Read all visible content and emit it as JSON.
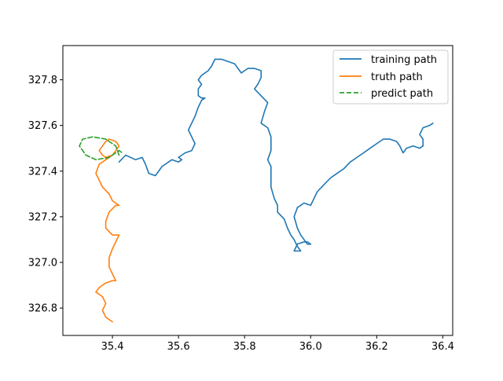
{
  "chart_data": {
    "type": "line",
    "xlim": [
      35.25,
      36.43
    ],
    "ylim": [
      326.68,
      327.95
    ],
    "xticks": [
      35.4,
      35.6,
      35.8,
      36.0,
      36.2,
      36.4
    ],
    "yticks": [
      326.8,
      327.0,
      327.2,
      327.4,
      327.6,
      327.8
    ],
    "xtick_labels": [
      "35.4",
      "35.6",
      "35.8",
      "36.0",
      "36.2",
      "36.4"
    ],
    "ytick_labels": [
      "326.8",
      "327.0",
      "327.2",
      "327.4",
      "327.6",
      "327.8"
    ],
    "grid": false,
    "legend_position": "top-right",
    "series": [
      {
        "name": "training path",
        "color": "#1f77b4",
        "style": "solid",
        "points": [
          [
            35.42,
            327.44
          ],
          [
            35.44,
            327.47
          ],
          [
            35.47,
            327.45
          ],
          [
            35.49,
            327.46
          ],
          [
            35.5,
            327.43
          ],
          [
            35.51,
            327.39
          ],
          [
            35.53,
            327.38
          ],
          [
            35.55,
            327.42
          ],
          [
            35.58,
            327.45
          ],
          [
            35.6,
            327.44
          ],
          [
            35.61,
            327.45
          ],
          [
            35.6,
            327.46
          ],
          [
            35.62,
            327.48
          ],
          [
            35.64,
            327.49
          ],
          [
            35.65,
            327.52
          ],
          [
            35.64,
            327.55
          ],
          [
            35.63,
            327.58
          ],
          [
            35.64,
            327.61
          ],
          [
            35.65,
            327.64
          ],
          [
            35.66,
            327.68
          ],
          [
            35.67,
            327.71
          ],
          [
            35.68,
            327.72
          ],
          [
            35.67,
            327.72
          ],
          [
            35.66,
            327.73
          ],
          [
            35.66,
            327.76
          ],
          [
            35.67,
            327.78
          ],
          [
            35.66,
            327.8
          ],
          [
            35.67,
            327.82
          ],
          [
            35.69,
            327.84
          ],
          [
            35.7,
            327.86
          ],
          [
            35.71,
            327.89
          ],
          [
            35.73,
            327.89
          ],
          [
            35.75,
            327.88
          ],
          [
            35.77,
            327.87
          ],
          [
            35.78,
            327.85
          ],
          [
            35.79,
            327.83
          ],
          [
            35.8,
            327.84
          ],
          [
            35.81,
            327.85
          ],
          [
            35.83,
            327.85
          ],
          [
            35.85,
            327.84
          ],
          [
            35.85,
            327.81
          ],
          [
            35.84,
            327.78
          ],
          [
            35.83,
            327.76
          ],
          [
            35.85,
            327.73
          ],
          [
            35.87,
            327.7
          ],
          [
            35.86,
            327.66
          ],
          [
            35.85,
            327.61
          ],
          [
            35.87,
            327.59
          ],
          [
            35.88,
            327.55
          ],
          [
            35.88,
            327.49
          ],
          [
            35.87,
            327.45
          ],
          [
            35.88,
            327.42
          ],
          [
            35.88,
            327.38
          ],
          [
            35.88,
            327.33
          ],
          [
            35.89,
            327.28
          ],
          [
            35.9,
            327.25
          ],
          [
            35.9,
            327.22
          ],
          [
            35.92,
            327.19
          ],
          [
            35.93,
            327.15
          ],
          [
            35.94,
            327.12
          ],
          [
            35.95,
            327.1
          ],
          [
            35.96,
            327.07
          ],
          [
            35.97,
            327.05
          ],
          [
            35.95,
            327.05
          ],
          [
            35.96,
            327.08
          ],
          [
            35.98,
            327.09
          ],
          [
            35.99,
            327.09
          ],
          [
            36.0,
            327.08
          ],
          [
            35.99,
            327.08
          ],
          [
            35.97,
            327.12
          ],
          [
            35.96,
            327.15
          ],
          [
            35.95,
            327.2
          ],
          [
            35.96,
            327.24
          ],
          [
            35.98,
            327.26
          ],
          [
            36.0,
            327.25
          ],
          [
            36.01,
            327.28
          ],
          [
            36.02,
            327.31
          ],
          [
            36.04,
            327.34
          ],
          [
            36.06,
            327.37
          ],
          [
            36.08,
            327.39
          ],
          [
            36.1,
            327.41
          ],
          [
            36.12,
            327.44
          ],
          [
            36.14,
            327.46
          ],
          [
            36.16,
            327.48
          ],
          [
            36.18,
            327.5
          ],
          [
            36.2,
            327.52
          ],
          [
            36.22,
            327.54
          ],
          [
            36.24,
            327.54
          ],
          [
            36.26,
            327.53
          ],
          [
            36.27,
            327.51
          ],
          [
            36.28,
            327.48
          ],
          [
            36.29,
            327.5
          ],
          [
            36.31,
            327.51
          ],
          [
            36.33,
            327.5
          ],
          [
            36.34,
            327.51
          ],
          [
            36.34,
            327.54
          ],
          [
            36.33,
            327.56
          ],
          [
            36.34,
            327.59
          ],
          [
            36.36,
            327.6
          ],
          [
            36.37,
            327.61
          ]
        ]
      },
      {
        "name": "truth path",
        "color": "#ff7f0e",
        "style": "solid",
        "points": [
          [
            35.4,
            326.74
          ],
          [
            35.38,
            326.76
          ],
          [
            35.37,
            326.79
          ],
          [
            35.38,
            326.82
          ],
          [
            35.37,
            326.85
          ],
          [
            35.35,
            326.87
          ],
          [
            35.36,
            326.89
          ],
          [
            35.38,
            326.91
          ],
          [
            35.4,
            326.92
          ],
          [
            35.41,
            326.92
          ],
          [
            35.4,
            326.95
          ],
          [
            35.39,
            326.98
          ],
          [
            35.39,
            327.02
          ],
          [
            35.4,
            327.06
          ],
          [
            35.41,
            327.09
          ],
          [
            35.42,
            327.12
          ],
          [
            35.4,
            327.12
          ],
          [
            35.38,
            327.15
          ],
          [
            35.38,
            327.18
          ],
          [
            35.39,
            327.22
          ],
          [
            35.41,
            327.25
          ],
          [
            35.42,
            327.25
          ],
          [
            35.4,
            327.27
          ],
          [
            35.39,
            327.3
          ],
          [
            35.37,
            327.33
          ],
          [
            35.36,
            327.36
          ],
          [
            35.35,
            327.39
          ],
          [
            35.36,
            327.43
          ],
          [
            35.38,
            327.45
          ],
          [
            35.4,
            327.47
          ],
          [
            35.41,
            327.49
          ],
          [
            35.42,
            327.51
          ],
          [
            35.41,
            327.53
          ],
          [
            35.39,
            327.54
          ],
          [
            35.38,
            327.53
          ],
          [
            35.37,
            327.51
          ],
          [
            35.36,
            327.49
          ],
          [
            35.37,
            327.47
          ],
          [
            35.38,
            327.46
          ],
          [
            35.4,
            327.47
          ]
        ]
      },
      {
        "name": "predict path",
        "color": "#2ca02c",
        "style": "dashed",
        "points": [
          [
            35.42,
            327.47
          ],
          [
            35.41,
            327.51
          ],
          [
            35.38,
            327.54
          ],
          [
            35.34,
            327.55
          ],
          [
            35.31,
            327.54
          ],
          [
            35.3,
            327.51
          ],
          [
            35.32,
            327.47
          ],
          [
            35.35,
            327.45
          ],
          [
            35.39,
            327.46
          ],
          [
            35.42,
            327.49
          ],
          [
            35.43,
            327.48
          ]
        ]
      }
    ]
  }
}
